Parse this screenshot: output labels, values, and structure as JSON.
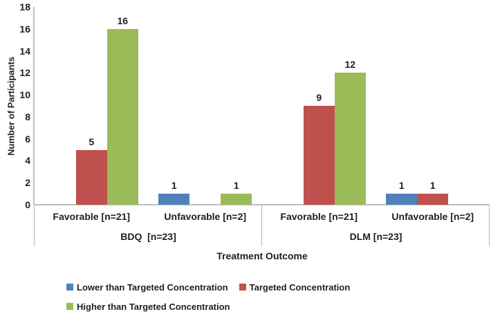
{
  "chart_data": {
    "type": "bar",
    "title": "",
    "ylabel": "Number of Participants",
    "xlabel": "Treatment Outcome",
    "ylim": [
      0,
      18
    ],
    "ytick_step": 2,
    "ytick_labels": [
      "0",
      "2",
      "4",
      "6",
      "8",
      "10",
      "12",
      "14",
      "16",
      "18"
    ],
    "grid": false,
    "legend_position": "bottom-left",
    "categories": [
      "Favorable [n=21]",
      "Unfavorable [n=2]",
      "Favorable [n=21]",
      "Unfavorable [n=2]"
    ],
    "group_labels": [
      "BDQ  [n=23]",
      "DLM [n=23]"
    ],
    "categories_per_group": 2,
    "series": [
      {
        "name": "Lower than Targeted Concentration",
        "color": "#4F81BD",
        "values": [
          0,
          1,
          0,
          1
        ]
      },
      {
        "name": "Targeted Concentration",
        "color": "#C0504D",
        "values": [
          5,
          0,
          9,
          1
        ]
      },
      {
        "name": "Higher than Targeted Concentration",
        "color": "#9BBB59",
        "values": [
          16,
          1,
          12,
          0
        ]
      }
    ],
    "value_labels": "shown above non-zero bars"
  }
}
